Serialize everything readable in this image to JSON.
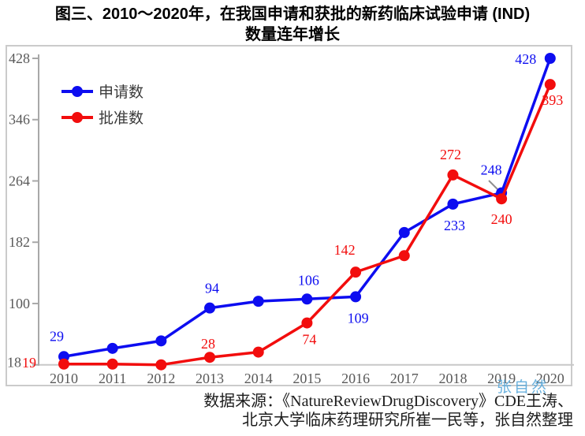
{
  "figure": {
    "title_line1": "图三、2010～2020年，在我国申请和获批的新药临床试验申请 (IND)",
    "title_line2": "数量连年增长"
  },
  "chart_data": {
    "type": "line",
    "title": "图三、2010～2020年，在我国申请和获批的新药临床试验申请 (IND) 数量连年增长",
    "categories": [
      "2010",
      "2011",
      "2012",
      "2013",
      "2014",
      "2015",
      "2016",
      "2017",
      "2018",
      "2019",
      "2020"
    ],
    "series": [
      {
        "name": "申请数",
        "color": "#0d0df0",
        "values": [
          29,
          40,
          50,
          94,
          103,
          106,
          109,
          195,
          233,
          248,
          428
        ],
        "labeled_indices": [
          0,
          3,
          5,
          6,
          8,
          9,
          10
        ]
      },
      {
        "name": "批准数",
        "color": "#f20d0d",
        "values": [
          19,
          19,
          18,
          28,
          35,
          74,
          142,
          164,
          272,
          240,
          393
        ],
        "labeled_indices": [
          0,
          3,
          5,
          6,
          8,
          9,
          10
        ]
      }
    ],
    "yticks": [
      18,
      100,
      182,
      264,
      346,
      428
    ],
    "ylim": [
      18,
      428
    ],
    "grid": false,
    "legend_position": "top-left-inside",
    "axis_text_color": "#595959",
    "axis_line_color": "#a8a8a8",
    "xaxis_line_color": "#c8c8c8"
  },
  "annotations": {
    "label_offsets": {
      "申请数": {
        "0": [
          -9,
          -26
        ],
        "3": [
          3,
          -25
        ],
        "5": [
          2,
          -24
        ],
        "6": [
          3,
          27
        ],
        "8": [
          2,
          27
        ],
        "9": [
          -13,
          -29
        ],
        "10": [
          -31,
          1
        ]
      },
      "批准数": {
        "0": [
          -44,
          -2
        ],
        "3": [
          -2,
          -17
        ],
        "5": [
          3,
          21
        ],
        "6": [
          -14,
          -28
        ],
        "8": [
          -3,
          -26
        ],
        "9": [
          0,
          26
        ],
        "10": [
          3,
          20
        ]
      }
    },
    "leader_line": {
      "for_label": "248",
      "from": [
        620,
        229
      ],
      "to": [
        634,
        243
      ],
      "color": "#8f8f8f"
    }
  },
  "watermark": {
    "text": "张自然",
    "color": "#58a8da"
  },
  "source": {
    "line1": "数据来源：《NatureReviewDrugDiscovery》CDE王涛、",
    "line2": "北京大学临床药理研究所崔一民等，张自然整理"
  }
}
